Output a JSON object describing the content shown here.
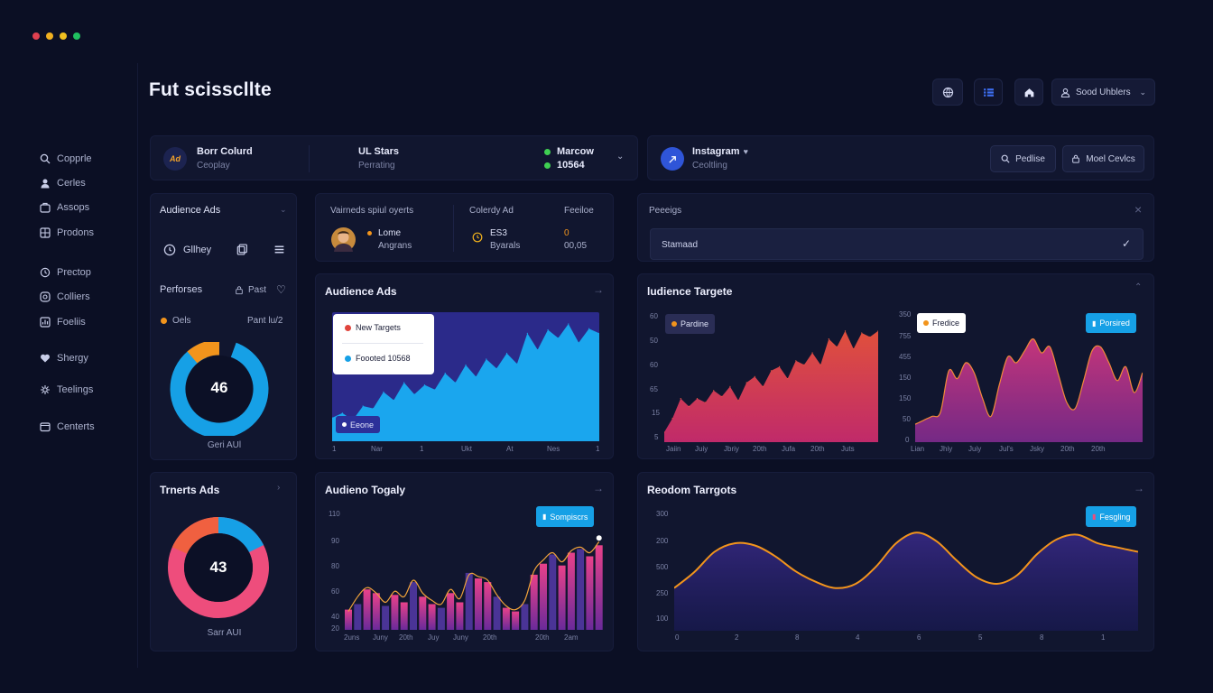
{
  "app": {
    "title": "Fut scisscllte"
  },
  "window_controls": {
    "colors": [
      "#e04050",
      "#f0b020",
      "#f0c020",
      "#20c060"
    ]
  },
  "sidebar": {
    "items": [
      {
        "label": "Copprle",
        "icon": "search-icon"
      },
      {
        "label": "Cerles",
        "icon": "user-icon"
      },
      {
        "label": "Assops",
        "icon": "apps-icon"
      },
      {
        "label": "Prodons",
        "icon": "grid-icon"
      },
      {
        "label": "Prectop",
        "icon": "clock-icon"
      },
      {
        "label": "Colliers",
        "icon": "circle-icon"
      },
      {
        "label": "Foeliis",
        "icon": "chart-icon"
      },
      {
        "label": "Shergy",
        "icon": "heart-icon"
      },
      {
        "label": "Teelings",
        "icon": "settings-icon"
      },
      {
        "label": "Centerts",
        "icon": "window-icon"
      }
    ]
  },
  "header": {
    "dropdown_label": "Sood Uhblers"
  },
  "account_bar": {
    "brand_logo": "Ad",
    "brand_name": "Borr Colurd",
    "brand_sub": "Ceoplay",
    "stat_title": "UL Stars",
    "stat_sub": "Perrating",
    "status_1": "Marcow",
    "status_2": "10564"
  },
  "instagram_bar": {
    "name": "Instagram",
    "sub": "Ceoltling",
    "button_1": "Pedlise",
    "button_2": "Moel Cevlcs"
  },
  "audience_panel": {
    "title": "Audience Ads",
    "row_label": "Gllhey",
    "perf_label": "Perforses",
    "perf_action": "Past",
    "legend_left": "Oels",
    "legend_right": "Pant lu/2"
  },
  "donut_1": {
    "value": "46",
    "caption": "Geri AUl",
    "percent": 88
  },
  "summary_panel": {
    "col1_title": "Vairneds spiul oyerts",
    "col2_title": "Colerdy Ad",
    "col3_title": "Feeiloe",
    "person_name": "Lome",
    "person_sub": "Angrans",
    "mid_value": "ES3",
    "mid_sub": "Byarals",
    "right_value": "0",
    "right_sub": "00,05"
  },
  "settings_panel": {
    "title": "Peeeigs",
    "select_value": "Stamaad"
  },
  "audience_chart": {
    "title": "Audience Ads",
    "tooltip_1": "New Targets",
    "tooltip_2": "Foooted 10568",
    "legend": "Eeone",
    "x_labels": [
      "1",
      "Nar",
      "1",
      "Ukt",
      "At",
      "Nes",
      "1"
    ]
  },
  "targets_chart": {
    "title": "ludience Targete",
    "left_legend": "Pardine",
    "mid_legend": "Fredice",
    "right_button": "Porsired",
    "left_y": [
      "60",
      "50",
      "60",
      "65",
      "15",
      "5"
    ],
    "right_y": [
      "350",
      "755",
      "455",
      "150",
      "150",
      "50",
      "0"
    ],
    "x_labels": [
      "Jaiin",
      "Juiy",
      "Jbriy",
      "20th",
      "Jufa",
      "20th",
      "Juts",
      "Lian",
      "Jhiy",
      "Juiy",
      "Jul's",
      "Jsky",
      "20th",
      "20th"
    ]
  },
  "ring_panel": {
    "title": "Trnerts Ads"
  },
  "donut_2": {
    "value": "43",
    "caption": "Sarr AUI",
    "percent": 72
  },
  "bars_chart": {
    "title": "Audieno Togaly",
    "button": "Sompiscrs",
    "y_labels": [
      "110",
      "90",
      "80",
      "60",
      "40",
      "20"
    ],
    "x_labels": [
      "2uns",
      "Juny",
      "20th",
      "Juy",
      "Juny",
      "20th",
      "20th",
      "2am"
    ]
  },
  "random_chart": {
    "title": "Reodom Tarrgots",
    "button": "Fesgling",
    "y_labels": [
      "300",
      "200",
      "500",
      "250",
      "100"
    ],
    "x_labels": [
      "0",
      "2",
      "8",
      "4",
      "6",
      "5",
      "8",
      "1"
    ]
  },
  "colors": {
    "background": "#0b0f24",
    "panel": "#11162f",
    "accent_blue": "#16a0e6",
    "accent_orange": "#f2941c",
    "accent_pink": "#ee4d7c",
    "accent_red": "#e0443c"
  },
  "chart_data": [
    {
      "type": "area",
      "title": "Audience Ads",
      "x": [
        0,
        1,
        2,
        3,
        4,
        5,
        6,
        7,
        8,
        9,
        10,
        11,
        12,
        13,
        14,
        15,
        16,
        17,
        18,
        19,
        20,
        21,
        22,
        23,
        24,
        25,
        26
      ],
      "values": [
        20,
        24,
        18,
        30,
        28,
        42,
        35,
        50,
        40,
        48,
        44,
        58,
        50,
        65,
        55,
        70,
        62,
        75,
        66,
        92,
        78,
        95,
        88,
        100,
        84,
        96,
        92
      ],
      "xlabels": [
        "1",
        "Nar",
        "1",
        "Ukt",
        "At",
        "Nes",
        "1"
      ],
      "ylim": [
        0,
        110
      ]
    },
    {
      "type": "area",
      "title": "ludience Targete",
      "series": [
        {
          "name": "Pardine",
          "values": [
            10,
            24,
            44,
            36,
            44,
            40,
            52,
            46,
            56,
            42,
            60,
            66,
            56,
            72,
            76,
            64,
            82,
            78,
            90,
            78,
            104,
            96,
            112,
            94,
            110,
            106,
            112
          ]
        }
      ],
      "ylim": [
        0,
        130
      ]
    },
    {
      "type": "area",
      "series": [
        {
          "name": "Fredice",
          "values": [
            18,
            22,
            26,
            30,
            72,
            64,
            80,
            70,
            44,
            26,
            58,
            86,
            80,
            92,
            104,
            90,
            96,
            68,
            40,
            34,
            62,
            92,
            96,
            80,
            62,
            76,
            50,
            70
          ]
        }
      ],
      "ylim": [
        0,
        130
      ]
    },
    {
      "type": "bar",
      "title": "Audieno Togaly",
      "values": [
        22,
        28,
        44,
        40,
        26,
        38,
        30,
        52,
        36,
        28,
        24,
        40,
        30,
        62,
        56,
        52,
        36,
        24,
        20,
        28,
        60,
        72,
        82,
        70,
        84,
        88,
        80,
        92
      ],
      "line": [
        20,
        36,
        46,
        40,
        30,
        42,
        36,
        54,
        40,
        32,
        28,
        44,
        34,
        60,
        58,
        54,
        38,
        26,
        22,
        32,
        64,
        76,
        84,
        74,
        86,
        90,
        84,
        96
      ],
      "ylim": [
        0,
        110
      ]
    },
    {
      "type": "line",
      "title": "Reodom Tarrgots",
      "values": [
        40,
        55,
        74,
        82,
        80,
        70,
        56,
        46,
        40,
        44,
        60,
        82,
        92,
        84,
        66,
        50,
        44,
        52,
        72,
        86,
        90,
        82,
        78,
        74
      ],
      "ylim": [
        0,
        110
      ]
    }
  ]
}
